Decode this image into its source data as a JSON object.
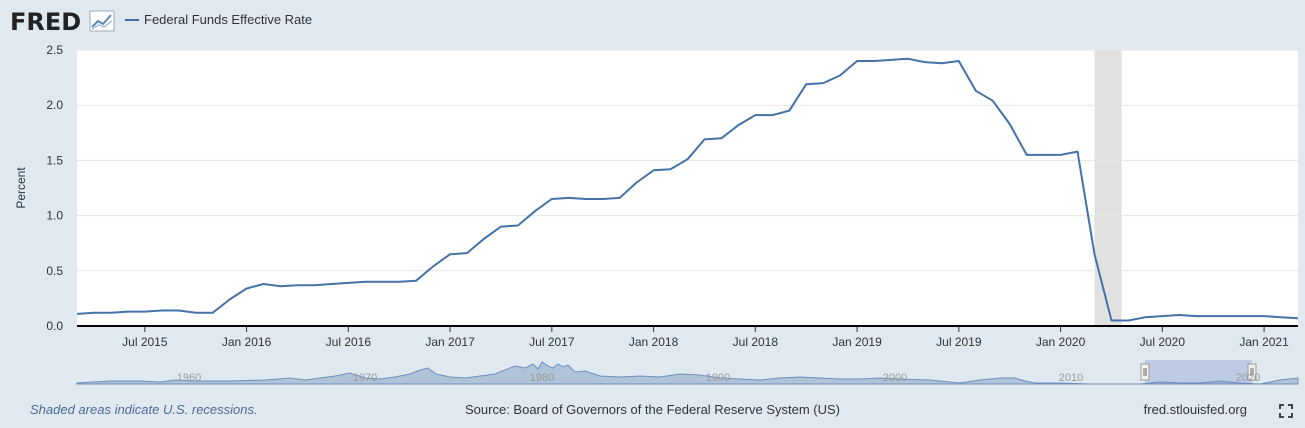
{
  "header": {
    "logo": "FRED",
    "legend_label": "Federal Funds Effective Rate",
    "logo_icon": "line-chart-icon"
  },
  "footer": {
    "recession_note": "Shaded areas indicate U.S. recessions.",
    "source": "Source: Board of Governors of the Federal Reserve System (US)",
    "site": "fred.stlouisfed.org",
    "fullscreen_icon": "fullscreen-icon"
  },
  "navigator": {
    "year_labels": [
      "1960",
      "1970",
      "1980",
      "1990",
      "2000",
      "2010",
      "2020"
    ]
  },
  "colors": {
    "series": "#4572a7",
    "recession": "#e1e1e1",
    "background": "#e1e9f0",
    "plot": "#ffffff",
    "grid": "#e6e6e6"
  },
  "chart_data": {
    "type": "line",
    "ylabel": "Percent",
    "ylim": [
      0,
      2.5
    ],
    "yticks": [
      0.0,
      0.5,
      1.0,
      1.5,
      2.0,
      2.5
    ],
    "ytick_labels": [
      "0.0",
      "0.5",
      "1.0",
      "1.5",
      "2.0",
      "2.5"
    ],
    "xticks": [
      "2015-07",
      "2016-01",
      "2016-07",
      "2017-01",
      "2017-07",
      "2018-01",
      "2018-07",
      "2019-01",
      "2019-07",
      "2020-01",
      "2020-07",
      "2021-01"
    ],
    "xtick_labels": [
      "Jul 2015",
      "Jan 2016",
      "Jul 2016",
      "Jan 2017",
      "Jul 2017",
      "Jan 2018",
      "Jul 2018",
      "Jan 2019",
      "Jul 2019",
      "Jan 2020",
      "Jul 2020",
      "Jan 2021"
    ],
    "xrange": [
      "2015-03",
      "2021-03"
    ],
    "grid": true,
    "recession": [
      "2020-03",
      "2020-04"
    ],
    "series": [
      {
        "name": "Federal Funds Effective Rate",
        "x": [
          "2015-03",
          "2015-04",
          "2015-05",
          "2015-06",
          "2015-07",
          "2015-08",
          "2015-09",
          "2015-10",
          "2015-11",
          "2015-12",
          "2016-01",
          "2016-02",
          "2016-03",
          "2016-04",
          "2016-05",
          "2016-06",
          "2016-07",
          "2016-08",
          "2016-09",
          "2016-10",
          "2016-11",
          "2016-12",
          "2017-01",
          "2017-02",
          "2017-03",
          "2017-04",
          "2017-05",
          "2017-06",
          "2017-07",
          "2017-08",
          "2017-09",
          "2017-10",
          "2017-11",
          "2017-12",
          "2018-01",
          "2018-02",
          "2018-03",
          "2018-04",
          "2018-05",
          "2018-06",
          "2018-07",
          "2018-08",
          "2018-09",
          "2018-10",
          "2018-11",
          "2018-12",
          "2019-01",
          "2019-02",
          "2019-03",
          "2019-04",
          "2019-05",
          "2019-06",
          "2019-07",
          "2019-08",
          "2019-09",
          "2019-10",
          "2019-11",
          "2019-12",
          "2020-01",
          "2020-02",
          "2020-03",
          "2020-04",
          "2020-05",
          "2020-06",
          "2020-07",
          "2020-08",
          "2020-09",
          "2020-10",
          "2020-11",
          "2020-12",
          "2021-01",
          "2021-02",
          "2021-03"
        ],
        "values": [
          0.11,
          0.12,
          0.12,
          0.13,
          0.13,
          0.14,
          0.14,
          0.12,
          0.12,
          0.24,
          0.34,
          0.38,
          0.36,
          0.37,
          0.37,
          0.38,
          0.39,
          0.4,
          0.4,
          0.4,
          0.41,
          0.54,
          0.65,
          0.66,
          0.79,
          0.9,
          0.91,
          1.04,
          1.15,
          1.16,
          1.15,
          1.15,
          1.16,
          1.3,
          1.41,
          1.42,
          1.51,
          1.69,
          1.7,
          1.82,
          1.91,
          1.91,
          1.95,
          2.19,
          2.2,
          2.27,
          2.4,
          2.4,
          2.41,
          2.42,
          2.39,
          2.38,
          2.4,
          2.13,
          2.04,
          1.83,
          1.55,
          1.55,
          1.55,
          1.58,
          0.65,
          0.05,
          0.05,
          0.08,
          0.09,
          0.1,
          0.09,
          0.09,
          0.09,
          0.09,
          0.09,
          0.08,
          0.07
        ]
      }
    ]
  }
}
